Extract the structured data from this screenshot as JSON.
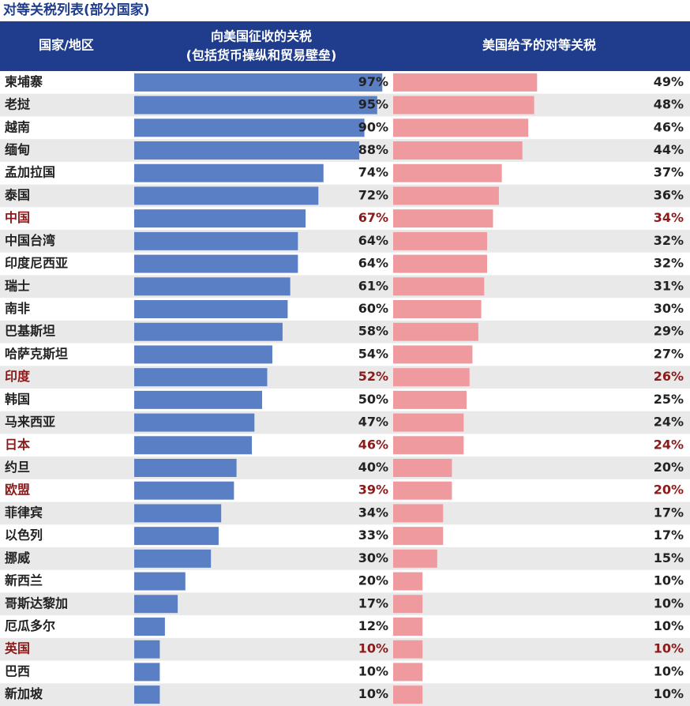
{
  "chart_data": {
    "type": "paired-bar",
    "title": "对等关税列表(部分国家)",
    "category_label": "国家/地区",
    "categories": [
      "柬埔寨",
      "老挝",
      "越南",
      "缅甸",
      "孟加拉国",
      "泰国",
      "中国",
      "中国台湾",
      "印度尼西亚",
      "瑞士",
      "南非",
      "巴基斯坦",
      "哈萨克斯坦",
      "印度",
      "韩国",
      "马来西亚",
      "日本",
      "约旦",
      "欧盟",
      "菲律宾",
      "以色列",
      "挪威",
      "新西兰",
      "哥斯达黎加",
      "厄瓜多尔",
      "英国",
      "巴西",
      "新加坡"
    ],
    "highlight": [
      6,
      13,
      16,
      18,
      25
    ],
    "highlight_color": "#8b1a1a",
    "series": [
      {
        "name": "向美国征收的关税",
        "detail": "(包括货币操纵和贸易壁垒)",
        "color": "#5b7fc4",
        "values": [
          97,
          95,
          90,
          88,
          74,
          72,
          67,
          64,
          64,
          61,
          60,
          58,
          54,
          52,
          50,
          47,
          46,
          40,
          39,
          34,
          33,
          30,
          20,
          17,
          12,
          10,
          10,
          10
        ],
        "value_labels": [
          "97%",
          "95%",
          "90%",
          "88%",
          "74%",
          "72%",
          "67%",
          "64%",
          "64%",
          "61%",
          "60%",
          "58%",
          "54%",
          "52%",
          "50%",
          "47%",
          "46%",
          "40%",
          "39%",
          "34%",
          "33%",
          "30%",
          "20%",
          "17%",
          "12%",
          "10%",
          "10%",
          "10%"
        ]
      },
      {
        "name": "美国给予的对等关税",
        "color": "#ee9a9f",
        "values": [
          49,
          48,
          46,
          44,
          37,
          36,
          34,
          32,
          32,
          31,
          30,
          29,
          27,
          26,
          25,
          24,
          24,
          20,
          20,
          17,
          17,
          15,
          10,
          10,
          10,
          10,
          10,
          10
        ],
        "value_labels": [
          "49%",
          "48%",
          "46%",
          "44%",
          "37%",
          "36%",
          "34%",
          "32%",
          "32%",
          "31%",
          "30%",
          "29%",
          "27%",
          "26%",
          "25%",
          "24%",
          "24%",
          "20%",
          "20%",
          "17%",
          "17%",
          "15%",
          "10%",
          "10%",
          "10%",
          "10%",
          "10%",
          "10%"
        ]
      }
    ]
  }
}
